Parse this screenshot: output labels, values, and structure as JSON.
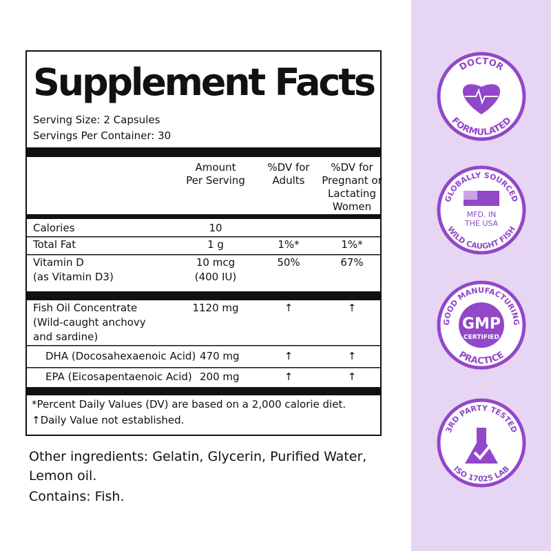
{
  "panel": {
    "title": "Supplement Facts",
    "serving_size": "Serving Size: 2 Capsules",
    "servings_per_container": "Servings Per Container: 30",
    "columns": [
      [
        "Amount",
        "Per Serving"
      ],
      [
        "%DV for",
        "Adults"
      ],
      [
        "%DV for",
        "Pregnant or",
        "Lactating",
        "Women"
      ]
    ],
    "rows": [
      {
        "name": [
          "Calories"
        ],
        "amount": [
          "10"
        ]
      },
      {
        "name": [
          "Total Fat"
        ],
        "amount": [
          "1 g"
        ],
        "dv_adults": "1%*",
        "dv_pregnant": "1%*"
      },
      {
        "name": [
          "Vitamin D",
          "(as Vitamin D3)"
        ],
        "amount": [
          "10 mcg",
          "(400 IU)"
        ],
        "dv_adults": "50%",
        "dv_pregnant": "67%"
      },
      {
        "name": [
          "Fish Oil Concentrate",
          "(Wild-caught anchovy",
          "and sardine)"
        ],
        "amount": [
          "1120 mg"
        ],
        "dv_adults": "↑",
        "dv_pregnant": "↑"
      },
      {
        "name": [
          "DHA (Docosahexaenoic Acid)"
        ],
        "amount": [
          "470 mg"
        ],
        "dv_adults": "↑",
        "dv_pregnant": "↑"
      },
      {
        "name": [
          "EPA (Eicosapentaenoic Acid)"
        ],
        "amount": [
          "200 mg"
        ],
        "dv_adults": "↑",
        "dv_pregnant": "↑"
      }
    ],
    "footnotes": [
      "*Percent Daily Values (DV) are based on a 2,000 calorie diet.",
      "↑Daily Value not established."
    ]
  },
  "other": [
    "Other ingredients: Gelatin, Glycerin, Purified Water,",
    "Lemon oil.",
    "Contains: Fish."
  ],
  "badges": [
    {
      "top": "DOCTOR",
      "bottom": "FORMULATED"
    },
    {
      "top": "GLOBALLY SOURCED",
      "bottom": "WILD CAUGHT FISH",
      "center": [
        "MFD. IN",
        "THE USA"
      ]
    },
    {
      "top": "GOOD MANUFACTURING",
      "bottom": "PRACTICE",
      "center": [
        "GMP",
        "CERTIFIED"
      ]
    },
    {
      "top": "3RD PARTY TESTED",
      "bottom": "ISO 17025 LAB"
    }
  ]
}
